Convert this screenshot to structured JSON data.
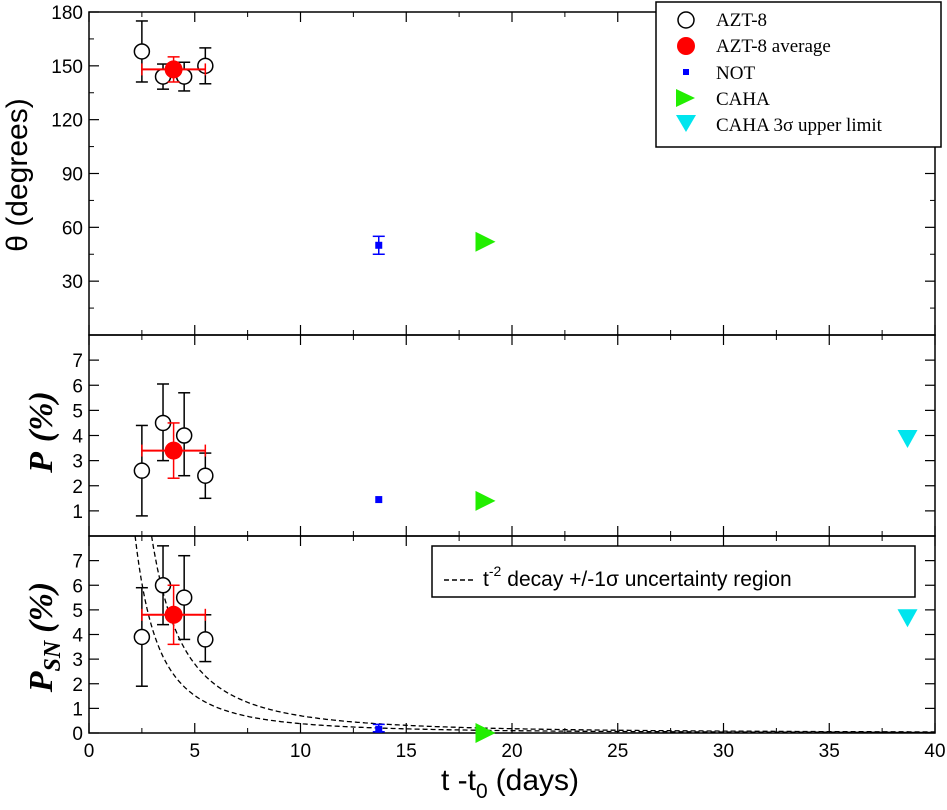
{
  "chart_data": [
    {
      "type": "scatter",
      "panel": "top",
      "ylabel": "θ (degrees)",
      "xlim": [
        0,
        40
      ],
      "ylim": [
        0,
        180
      ],
      "yticks": [
        30,
        60,
        90,
        120,
        150,
        180
      ],
      "legend_placement": "top-right",
      "legend": [
        "AZT-8",
        "AZT-8 average",
        "NOT",
        "CAHA",
        "CAHA 3σ upper limit"
      ],
      "series": [
        {
          "name": "AZT-8",
          "marker": "open-circle",
          "points": [
            {
              "x": 2.5,
              "y": 158,
              "ylo": 141,
              "yhi": 175
            },
            {
              "x": 3.5,
              "y": 144,
              "ylo": 137,
              "yhi": 151
            },
            {
              "x": 4.5,
              "y": 144,
              "ylo": 136,
              "yhi": 152
            },
            {
              "x": 5.5,
              "y": 150,
              "ylo": 140,
              "yhi": 160
            }
          ]
        },
        {
          "name": "AZT-8 average",
          "marker": "filled-circle",
          "points": [
            {
              "x": 4.0,
              "y": 148,
              "ylo": 141,
              "yhi": 155,
              "xlo": 2.5,
              "xhi": 5.5
            }
          ]
        },
        {
          "name": "NOT",
          "marker": "square",
          "points": [
            {
              "x": 13.7,
              "y": 50,
              "ylo": 45,
              "yhi": 55
            }
          ]
        },
        {
          "name": "CAHA",
          "marker": "triangle-right",
          "points": [
            {
              "x": 18.7,
              "y": 52
            }
          ]
        }
      ]
    },
    {
      "type": "scatter",
      "panel": "middle",
      "ylabel_main": "P",
      "ylabel_unit": "(%)",
      "xlim": [
        0,
        40
      ],
      "ylim": [
        0,
        8
      ],
      "yticks": [
        1,
        2,
        3,
        4,
        5,
        6,
        7
      ],
      "series": [
        {
          "name": "AZT-8",
          "marker": "open-circle",
          "points": [
            {
              "x": 2.5,
              "y": 2.6,
              "ylo": 0.8,
              "yhi": 4.4
            },
            {
              "x": 3.5,
              "y": 4.5,
              "ylo": 3.0,
              "yhi": 6.05
            },
            {
              "x": 4.5,
              "y": 4.0,
              "ylo": 2.4,
              "yhi": 5.7
            },
            {
              "x": 5.5,
              "y": 2.4,
              "ylo": 1.5,
              "yhi": 3.3
            }
          ]
        },
        {
          "name": "AZT-8 average",
          "marker": "filled-circle",
          "points": [
            {
              "x": 4.0,
              "y": 3.4,
              "ylo": 2.3,
              "yhi": 4.5,
              "xlo": 2.5,
              "xhi": 5.5
            }
          ]
        },
        {
          "name": "NOT",
          "marker": "square",
          "points": [
            {
              "x": 13.7,
              "y": 1.45
            }
          ]
        },
        {
          "name": "CAHA",
          "marker": "triangle-right",
          "points": [
            {
              "x": 18.7,
              "y": 1.4
            }
          ]
        },
        {
          "name": "CAHA 3σ upper limit",
          "marker": "triangle-down",
          "points": [
            {
              "x": 38.7,
              "y": 3.9
            }
          ]
        }
      ]
    },
    {
      "type": "scatter",
      "panel": "bottom",
      "ylabel_main": "P",
      "ylabel_sub": "SN",
      "ylabel_unit": "(%)",
      "xlabel_main": "t -t",
      "xlabel_sub": "0",
      "xlabel_unit": "(days)",
      "xlim": [
        0,
        40
      ],
      "ylim": [
        0,
        8
      ],
      "xticks": [
        0,
        5,
        10,
        15,
        20,
        25,
        30,
        35,
        40
      ],
      "yticks": [
        0,
        1,
        2,
        3,
        4,
        5,
        6,
        7
      ],
      "legend_placement": "top-right",
      "legend_base": "t",
      "legend_exp": "-2",
      "legend_rest": "decay +/-1σ uncertainty region",
      "curves": [
        {
          "name": "lower",
          "coef": 38
        },
        {
          "name": "upper",
          "coef": 70
        }
      ],
      "series": [
        {
          "name": "AZT-8",
          "marker": "open-circle",
          "points": [
            {
              "x": 2.5,
              "y": 3.9,
              "ylo": 1.9,
              "yhi": 5.9
            },
            {
              "x": 3.5,
              "y": 6.0,
              "ylo": 4.4,
              "yhi": 7.6
            },
            {
              "x": 4.5,
              "y": 5.5,
              "ylo": 3.8,
              "yhi": 7.2
            },
            {
              "x": 5.5,
              "y": 3.8,
              "ylo": 2.9,
              "yhi": 4.8
            }
          ]
        },
        {
          "name": "AZT-8 average",
          "marker": "filled-circle",
          "points": [
            {
              "x": 4.0,
              "y": 4.8,
              "ylo": 3.6,
              "yhi": 6.0,
              "xlo": 2.5,
              "xhi": 5.5
            }
          ]
        },
        {
          "name": "NOT",
          "marker": "square",
          "points": [
            {
              "x": 13.7,
              "y": 0.15,
              "ylo": 0.05,
              "yhi": 0.35
            }
          ]
        },
        {
          "name": "CAHA",
          "marker": "triangle-right",
          "points": [
            {
              "x": 18.7,
              "y": 0.0
            }
          ]
        },
        {
          "name": "CAHA 3σ upper limit",
          "marker": "triangle-down",
          "points": [
            {
              "x": 38.7,
              "y": 4.7
            }
          ]
        }
      ]
    }
  ],
  "colors": {
    "azt8": "#000000",
    "average": "#ff0000",
    "not": "#0000ff",
    "caha": "#22ee00",
    "caha_limit": "#00e5ee"
  }
}
